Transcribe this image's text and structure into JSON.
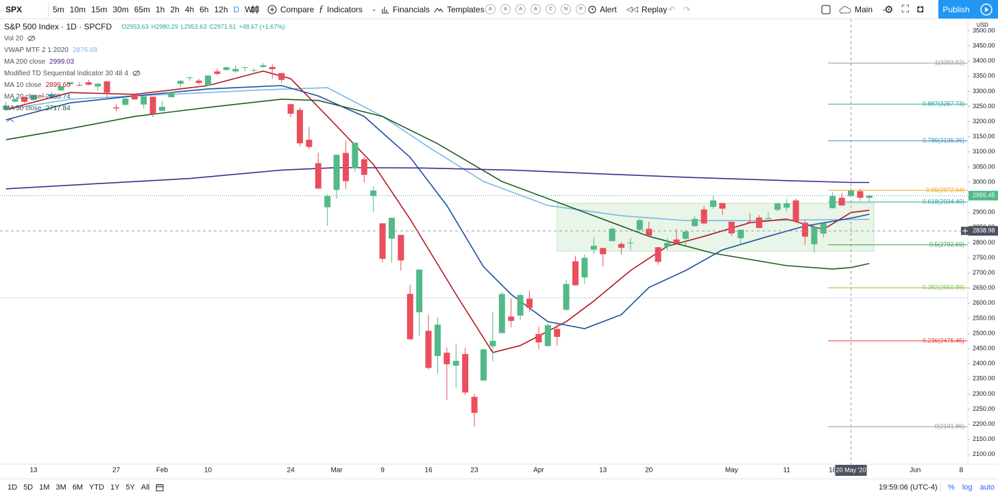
{
  "toolbar": {
    "symbol": "SPX",
    "intervals": [
      "5m",
      "10m",
      "15m",
      "30m",
      "65m",
      "1h",
      "2h",
      "4h",
      "6h",
      "12h",
      "D",
      "W"
    ],
    "active_interval": "D",
    "buttons": [
      "Compare",
      "Indicators",
      "Financials",
      "Templates"
    ],
    "template_letters": [
      "A",
      "A",
      "A",
      "A",
      "C",
      "N",
      "P"
    ],
    "alert": "Alert",
    "replay": "Replay",
    "layout": "Main",
    "publish": "Publish"
  },
  "legend": {
    "title": "S&P 500 Index · 1D · SPCFD",
    "ohlc": [
      "O2953.63",
      "H2980.29",
      "L2953.63",
      "C2971.61",
      "+48.67 (+1.67%)"
    ],
    "volume": "Vol 20",
    "td": "Modified TD Sequential Indicator 30 48 4"
  },
  "chart_data": {
    "type": "candlestick",
    "currency": "USD",
    "up_color": "#53b987",
    "down_color": "#eb4d5c",
    "categories": [
      null,
      null,
      null,
      "13",
      null,
      null,
      null,
      null,
      null,
      null,
      null,
      null,
      "27",
      null,
      null,
      null,
      null,
      "Feb",
      null,
      null,
      null,
      null,
      "10",
      null,
      null,
      null,
      null,
      null,
      null,
      null,
      null,
      "24",
      null,
      null,
      null,
      null,
      "Mar",
      null,
      null,
      null,
      null,
      "9",
      null,
      null,
      null,
      null,
      "16",
      null,
      null,
      null,
      null,
      "23",
      null,
      null,
      null,
      null,
      null,
      null,
      "Apr",
      null,
      null,
      null,
      null,
      null,
      null,
      "13",
      null,
      null,
      null,
      null,
      "20",
      null,
      null,
      null,
      null,
      null,
      null,
      null,
      null,
      "May",
      null,
      null,
      null,
      null,
      null,
      "11",
      null,
      null,
      null,
      null,
      "18",
      null,
      null,
      null,
      null,
      null,
      null,
      null,
      null,
      "Jun",
      null,
      null,
      null,
      null,
      "8"
    ],
    "open": [
      3238.59,
      3266.03,
      3281.03,
      3271.13,
      3285.35,
      3282.27,
      3302.97,
      3323.66,
      3321.03,
      3330.02,
      3315.77,
      3333.1,
      3247.16,
      3255.35,
      3289.46,
      3256.45,
      3282.33,
      3235.66,
      3280.61,
      3324.91,
      3344.92,
      3335.54,
      3318.28,
      3365.87,
      3370.5,
      3365.9,
      3378.08,
      3369.04,
      3380.39,
      3380.45,
      3360.5,
      3257.61,
      3238.94,
      3139.9,
      3062.54,
      2916.9,
      2974.28,
      3096.46,
      3045.75,
      3075.7,
      2954.2,
      2863.89,
      2813.48,
      2825.6,
      2630.86,
      2569.99,
      2508.59,
      2425.66,
      2436.5,
      2393.48,
      2431.94,
      2290.71,
      2344.44,
      2457.77,
      2501.29,
      2555.87,
      2558.98,
      2614.69,
      2498.08,
      2458.54,
      2514.92,
      2578.28,
      2738.65,
      2685.0,
      2776.99,
      2782.46,
      2805.1,
      2795.64,
      2799.34,
      2842.43,
      2845.62,
      2784.81,
      2787.89,
      2810.42,
      2812.64,
      2854.65,
      2909.96,
      2918.46,
      2930.91,
      2869.09,
      2815.01,
      2868.88,
      2883.14,
      2878.26,
      2908.83,
      2915.46,
      2939.5,
      2865.86,
      2794.54,
      2829.95,
      2913.86,
      2948.59,
      2953.63,
      2969.95,
      2948.05,
      null,
      null,
      null,
      null,
      null,
      null,
      null,
      null,
      null,
      null
    ],
    "high": [
      3267.07,
      3275.58,
      3282.99,
      3288.13,
      3294.25,
      3298.66,
      3317.11,
      3329.88,
      3329.79,
      3337.77,
      3326.88,
      3333.18,
      3258.85,
      3285.78,
      3293.47,
      3285.91,
      3282.33,
      3268.44,
      3306.92,
      3337.58,
      3347.96,
      3341.42,
      3352.26,
      3375.63,
      3381.47,
      3385.09,
      3380.69,
      3375.01,
      3393.52,
      3389.15,
      3360.76,
      3259.81,
      3246.99,
      3182.51,
      3097.07,
      2959.72,
      3090.96,
      3136.72,
      3130.97,
      3083.04,
      2985.93,
      2863.89,
      2882.59,
      2825.6,
      2660.95,
      2711.33,
      2562.98,
      2553.93,
      2453.57,
      2466.97,
      2453.01,
      2300.73,
      2449.71,
      2571.42,
      2637.01,
      2615.91,
      2631.8,
      2641.39,
      2522.75,
      2533.22,
      2538.18,
      2676.85,
      2756.89,
      2760.75,
      2818.57,
      2782.46,
      2851.85,
      2801.88,
      2815.0,
      2879.22,
      2868.98,
      2785.54,
      2815.1,
      2844.9,
      2842.71,
      2887.72,
      2921.15,
      2954.86,
      2930.91,
      2869.09,
      2844.24,
      2898.23,
      2891.11,
      2901.92,
      2932.16,
      2944.25,
      2945.82,
      2874.14,
      2852.8,
      2865.01,
      2968.09,
      2964.21,
      2980.29,
      2978.5,
      2956.76,
      null,
      null,
      null,
      null,
      null,
      null,
      null,
      null,
      null,
      null
    ],
    "low": [
      3236.67,
      3263.67,
      3260.86,
      3268.43,
      3277.19,
      3280.69,
      3302.82,
      3318.86,
      3316.61,
      3320.04,
      3301.87,
      3281.53,
      3234.5,
      3253.22,
      3271.89,
      3242.8,
      3214.68,
      3235.66,
      3280.61,
      3313.75,
      3334.39,
      3322.12,
      3317.77,
      3352.72,
      3369.72,
      3360.52,
      3366.15,
      3355.61,
      3378.83,
      3341.02,
      3328.45,
      3214.65,
      3118.77,
      3108.99,
      2977.39,
      2855.84,
      2945.19,
      2976.63,
      3034.38,
      2999.83,
      2901.54,
      2734.43,
      2734.0,
      2707.22,
      2478.86,
      2492.37,
      2380.94,
      2367.04,
      2280.52,
      2319.78,
      2295.56,
      2191.86,
      2344.44,
      2407.53,
      2500.72,
      2520.02,
      2545.28,
      2571.15,
      2447.49,
      2455.79,
      2459.96,
      2574.57,
      2657.67,
      2663.3,
      2762.36,
      2721.17,
      2805.1,
      2761.54,
      2775.95,
      2830.88,
      2820.43,
      2727.1,
      2775.95,
      2794.26,
      2791.76,
      2852.89,
      2860.71,
      2912.16,
      2892.47,
      2821.61,
      2797.85,
      2863.55,
      2847.65,
      2876.48,
      2902.88,
      2903.44,
      2869.59,
      2793.15,
      2766.64,
      2816.78,
      2913.86,
      2922.35,
      2953.63,
      2938.57,
      2933.59,
      null,
      null,
      null,
      null,
      null,
      null,
      null,
      null,
      null,
      null
    ],
    "close": [
      3253.05,
      3274.7,
      3265.35,
      3288.13,
      3283.15,
      3289.29,
      3316.81,
      3329.62,
      3320.79,
      3321.75,
      3325.54,
      3295.47,
      3243.63,
      3276.24,
      3273.4,
      3283.66,
      3225.52,
      3248.92,
      3297.59,
      3334.69,
      3345.78,
      3327.71,
      3352.09,
      3357.75,
      3379.45,
      3373.94,
      3380.16,
      3370.29,
      3386.15,
      3373.23,
      3337.75,
      3225.89,
      3128.21,
      3116.39,
      2978.76,
      2954.22,
      3090.23,
      3003.37,
      3130.12,
      3023.94,
      2972.37,
      2746.56,
      2882.23,
      2741.38,
      2480.64,
      2711.02,
      2386.13,
      2529.19,
      2398.1,
      2409.39,
      2304.92,
      2237.4,
      2447.33,
      2475.56,
      2630.07,
      2541.47,
      2626.65,
      2584.59,
      2470.5,
      2526.9,
      2488.65,
      2663.68,
      2659.41,
      2749.98,
      2789.82,
      2761.63,
      2846.06,
      2783.36,
      2799.55,
      2874.56,
      2823.16,
      2736.56,
      2799.31,
      2797.8,
      2836.74,
      2878.48,
      2863.39,
      2939.51,
      2912.43,
      2830.71,
      2842.74,
      2868.44,
      2848.42,
      2881.19,
      2929.8,
      2930.32,
      2870.12,
      2820.0,
      2852.5,
      2863.7,
      2953.91,
      2922.94,
      2971.61,
      2948.51,
      2955.45,
      null,
      null,
      null,
      null,
      null,
      null,
      null,
      null,
      null,
      null
    ],
    "series": [
      {
        "name": "VWAP MTF 2 1 2020",
        "legend_value": "2876.68",
        "color": "#7ab8e6",
        "x": [
          0,
          7,
          14,
          22,
          28,
          35,
          41,
          46,
          52,
          59,
          67,
          74,
          81,
          92,
          94
        ],
        "values": [
          3240,
          3274,
          3285,
          3296,
          3305,
          3312,
          3217,
          3116,
          3002,
          2923,
          2889,
          2873,
          2873,
          2876.68,
          2877
        ]
      },
      {
        "name": "MA 200 close",
        "legend_value": "2999.03",
        "color": "#4a2390",
        "x": [
          0,
          10,
          20,
          30,
          36,
          45,
          55,
          65,
          75,
          85,
          92,
          94
        ],
        "values": [
          2978,
          2995,
          3012,
          3040,
          3048,
          3047,
          3040,
          3027,
          3015,
          3005,
          2999.03,
          2999
        ]
      },
      {
        "name": "MA 10 close",
        "legend_value": "2899.60",
        "color": "#b0171f",
        "x": [
          0,
          7,
          14,
          22,
          28,
          31,
          35,
          40,
          44,
          49,
          53,
          56,
          61,
          64,
          68,
          72,
          76,
          81,
          85,
          89,
          92,
          94
        ],
        "values": [
          3240,
          3296,
          3290,
          3319,
          3367,
          3342,
          3217,
          3059,
          2878,
          2629,
          2437,
          2460,
          2539,
          2607,
          2708,
          2788,
          2821,
          2866,
          2878,
          2844,
          2899.6,
          2907
        ]
      },
      {
        "name": "MA 20 close",
        "legend_value": "2880.74",
        "color": "#1c4f9c",
        "x": [
          0,
          7,
          14,
          22,
          30,
          34,
          39,
          44,
          48,
          52,
          55,
          59,
          63,
          67,
          70,
          74,
          78,
          83,
          87,
          92,
          94
        ],
        "values": [
          3206,
          3262,
          3285,
          3308,
          3319,
          3285,
          3217,
          3082,
          2923,
          2720,
          2629,
          2539,
          2516,
          2562,
          2652,
          2708,
          2776,
          2821,
          2855,
          2880.74,
          2894
        ]
      },
      {
        "name": "MA 50 close",
        "legend_value": "2717.84",
        "color": "#1b5e20",
        "x": [
          0,
          7,
          14,
          22,
          30,
          34,
          41,
          47,
          54,
          61,
          70,
          77,
          85,
          90,
          92,
          94
        ],
        "values": [
          3140,
          3177,
          3217,
          3247,
          3274,
          3270,
          3217,
          3127,
          3002,
          2923,
          2821,
          2765,
          2724,
          2713,
          2717.84,
          2731
        ]
      }
    ],
    "ylim": [
      2068,
      3538.5
    ],
    "yticks": [
      {
        "value": 2100,
        "label": "2100.00"
      },
      {
        "value": 2150,
        "label": "2150.00"
      },
      {
        "value": 2200,
        "label": "2200.00"
      },
      {
        "value": 2250,
        "label": "2250.00"
      },
      {
        "value": 2300,
        "label": "2300.00"
      },
      {
        "value": 2350,
        "label": "2350.00"
      },
      {
        "value": 2400,
        "label": "2400.00"
      },
      {
        "value": 2450,
        "label": "2450.00"
      },
      {
        "value": 2500,
        "label": "2500.00"
      },
      {
        "value": 2550,
        "label": "2550.00"
      },
      {
        "value": 2600,
        "label": "2600.00"
      },
      {
        "value": 2650,
        "label": "2650.00"
      },
      {
        "value": 2700,
        "label": "2700.00"
      },
      {
        "value": 2750,
        "label": "2750.00"
      },
      {
        "value": 2800,
        "label": "2800.00"
      },
      {
        "value": 2850,
        "label": "2850.00"
      },
      {
        "value": 2900,
        "label": "2900.00"
      },
      {
        "value": 2950,
        "label": "2950.00"
      },
      {
        "value": 3000,
        "label": "3000.00"
      },
      {
        "value": 3050,
        "label": "3050.00"
      },
      {
        "value": 3100,
        "label": "3100.00"
      },
      {
        "value": 3150,
        "label": "3150.00"
      },
      {
        "value": 3200,
        "label": "3200.00"
      },
      {
        "value": 3250,
        "label": "3250.00"
      },
      {
        "value": 3300,
        "label": "3300.00"
      },
      {
        "value": 3350,
        "label": "3350.00"
      },
      {
        "value": 3400,
        "label": "3400.00"
      },
      {
        "value": 3450,
        "label": "3450.00"
      },
      {
        "value": 3500,
        "label": "3500.00"
      }
    ],
    "grid": false,
    "last_price": 2955.45,
    "hlines": [
      2618
    ],
    "zone": {
      "from": 60,
      "to": 94.5,
      "low": 2772,
      "high": 2930,
      "color": "#4caf50"
    },
    "fib": {
      "start": 90,
      "levels": [
        {
          "label": "1(3393.52)",
          "value": 3393.52,
          "color": "#9598a1"
        },
        {
          "label": "0.887(3257.73)",
          "value": 3257.73,
          "color": "#26a69a"
        },
        {
          "label": "0.786(3136.36)",
          "value": 3136.36,
          "color": "#3b8fc9"
        },
        {
          "label": "0.65(2972.94)",
          "value": 2972.94,
          "color": "#f5a623"
        },
        {
          "label": "0.618(2934.49)",
          "value": 2934.49,
          "color": "#26a69a"
        },
        {
          "label": "0.5(2792.69)",
          "value": 2792.69,
          "color": "#43a047"
        },
        {
          "label": "0.382(2650.89)",
          "value": 2650.89,
          "color": "#8bc34a"
        },
        {
          "label": "0.236(2475.45)",
          "value": 2475.45,
          "color": "#e53935"
        },
        {
          "label": "0(2191.86)",
          "value": 2191.86,
          "color": "#9598a1"
        }
      ]
    },
    "crosshair": {
      "index": 92,
      "price": 2838.98,
      "date_label": "20 May '20"
    }
  },
  "bottom_bar": {
    "ranges": [
      "1D",
      "5D",
      "1M",
      "3M",
      "6M",
      "YTD",
      "1Y",
      "5Y",
      "All"
    ],
    "time": "19:59:06 (UTC-4)",
    "options": [
      "%",
      "log",
      "auto"
    ]
  }
}
